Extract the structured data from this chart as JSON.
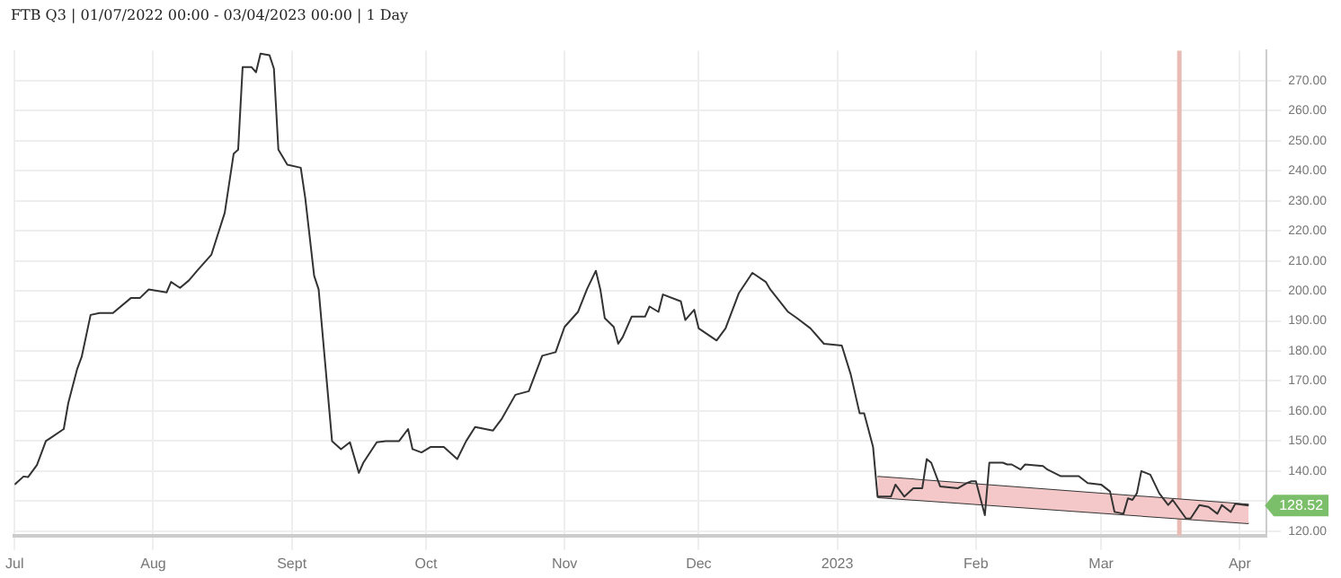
{
  "chart_data": {
    "type": "line",
    "title": "FTB Q3 | 01/07/2022 00:00 - 03/04/2023 00:00 | 1 Day",
    "x": [
      "2022-07-01",
      "2022-07-03",
      "2022-07-04",
      "2022-07-06",
      "2022-07-08",
      "2022-07-09",
      "2022-07-12",
      "2022-07-13",
      "2022-07-15",
      "2022-07-16",
      "2022-07-18",
      "2022-07-20",
      "2022-07-23",
      "2022-07-27",
      "2022-07-29",
      "2022-07-31",
      "2022-08-04",
      "2022-08-05",
      "2022-08-07",
      "2022-08-09",
      "2022-08-11",
      "2022-08-14",
      "2022-08-17",
      "2022-08-19",
      "2022-08-20",
      "2022-08-21",
      "2022-08-23",
      "2022-08-24",
      "2022-08-25",
      "2022-08-27",
      "2022-08-28",
      "2022-08-29",
      "2022-08-31",
      "2022-09-03",
      "2022-09-04",
      "2022-09-06",
      "2022-09-07",
      "2022-09-10",
      "2022-09-12",
      "2022-09-14",
      "2022-09-16",
      "2022-09-17",
      "2022-09-20",
      "2022-09-22",
      "2022-09-25",
      "2022-09-27",
      "2022-09-28",
      "2022-09-30",
      "2022-10-02",
      "2022-10-05",
      "2022-10-08",
      "2022-10-10",
      "2022-10-12",
      "2022-10-16",
      "2022-10-18",
      "2022-10-21",
      "2022-10-24",
      "2022-10-27",
      "2022-10-30",
      "2022-11-01",
      "2022-11-04",
      "2022-11-06",
      "2022-11-08",
      "2022-11-09",
      "2022-11-10",
      "2022-11-12",
      "2022-11-13",
      "2022-11-14",
      "2022-11-16",
      "2022-11-19",
      "2022-11-20",
      "2022-11-22",
      "2022-11-23",
      "2022-11-27",
      "2022-11-28",
      "2022-11-30",
      "2022-12-01",
      "2022-12-05",
      "2022-12-07",
      "2022-12-10",
      "2022-12-13",
      "2022-12-16",
      "2022-12-17",
      "2022-12-21",
      "2022-12-23",
      "2022-12-26",
      "2022-12-29",
      "2023-01-02",
      "2023-01-04",
      "2023-01-06",
      "2023-01-07",
      "2023-01-09",
      "2023-01-10",
      "2023-01-13",
      "2023-01-14",
      "2023-01-16",
      "2023-01-18",
      "2023-01-20",
      "2023-01-21",
      "2023-01-22",
      "2023-01-24",
      "2023-01-28",
      "2023-01-30",
      "2023-01-31",
      "2023-02-01",
      "2023-02-03",
      "2023-02-04",
      "2023-02-07",
      "2023-02-08",
      "2023-02-09",
      "2023-02-11",
      "2023-02-12",
      "2023-02-16",
      "2023-02-17",
      "2023-02-20",
      "2023-02-24",
      "2023-02-26",
      "2023-03-01",
      "2023-03-03",
      "2023-03-04",
      "2023-03-06",
      "2023-03-07",
      "2023-03-08",
      "2023-03-09",
      "2023-03-10",
      "2023-03-12",
      "2023-03-14",
      "2023-03-16",
      "2023-03-17",
      "2023-03-20",
      "2023-03-21",
      "2023-03-23",
      "2023-03-25",
      "2023-03-27",
      "2023-03-28",
      "2023-03-30",
      "2023-03-31",
      "2023-04-03"
    ],
    "series": [
      {
        "color": "#333333",
        "values": [
          135.5,
          138.2,
          138,
          142,
          150,
          151,
          154,
          162.6,
          174,
          178,
          192,
          192.6,
          192.6,
          197.6,
          197.6,
          200.5,
          199.5,
          203,
          201,
          203.5,
          207,
          212,
          226,
          245.7,
          247,
          274.5,
          274.5,
          272.8,
          279,
          278.5,
          274,
          247,
          242,
          241,
          231,
          205,
          200.5,
          150,
          147.3,
          149.6,
          139.4,
          142.8,
          149.6,
          150,
          150,
          154,
          147.3,
          146.2,
          148,
          148,
          144,
          150,
          154.7,
          153.5,
          157.5,
          165.4,
          166.6,
          178.4,
          179.6,
          188,
          193,
          200.5,
          206.7,
          200.5,
          190.9,
          188,
          182.4,
          184.6,
          191.4,
          191.4,
          194.8,
          193,
          198.8,
          196.5,
          190.3,
          193.7,
          187.5,
          183.5,
          187.5,
          199.3,
          206,
          203,
          200.5,
          193,
          190.9,
          187.5,
          182.4,
          181.8,
          172.2,
          159.2,
          159.2,
          148,
          131.5,
          131.5,
          135.5,
          131.5,
          134.3,
          134.3,
          144,
          142.8,
          134.9,
          134.3,
          136,
          136.6,
          136.6,
          125.3,
          142.8,
          142.8,
          142.2,
          142.2,
          140.5,
          142.2,
          141.7,
          140.5,
          138.3,
          138.3,
          136,
          135.5,
          133.2,
          126.4,
          125.8,
          130.9,
          130.4,
          132.6,
          140,
          138.8,
          132.6,
          128.7,
          130.4,
          124.2,
          124.2,
          128.7,
          128.1,
          125.8,
          128.7,
          126.4,
          129.1,
          128.52
        ]
      },
      {
        "color": "#f4c8c8",
        "x": [
          "2023-01-10",
          "2023-04-03"
        ],
        "values": [
          null,
          null
        ],
        "lower": [
          131.3,
          122.6
        ],
        "upper": [
          138.1,
          128.8
        ]
      },
      {
        "color": "#333333",
        "x": [
          "2023-01-10",
          "2023-04-03"
        ],
        "values": [
          138.1,
          128.8
        ]
      },
      {
        "color": "#333333",
        "x": [
          "2023-01-10",
          "2023-04-03"
        ],
        "values": [
          131.3,
          122.6
        ]
      }
    ],
    "bands": [
      {
        "axis": "x",
        "from": "2023-03-18",
        "to": "2023-03-19",
        "color": "#e8bcb5"
      }
    ],
    "annotations": [
      {
        "text": "128.52",
        "x": "2023-04-03",
        "y": 128.52
      }
    ],
    "xlim": [
      "2022-07-01",
      "2023-04-07"
    ],
    "xticks": [
      {
        "value": "2022-07-01",
        "label": "Jul"
      },
      {
        "value": "2022-08-01",
        "label": "Aug"
      },
      {
        "value": "2022-09-01",
        "label": "Sept"
      },
      {
        "value": "2022-10-01",
        "label": "Oct"
      },
      {
        "value": "2022-11-01",
        "label": "Nov"
      },
      {
        "value": "2022-12-01",
        "label": "Dec"
      },
      {
        "value": "2023-01-01",
        "label": "2023"
      },
      {
        "value": "2023-02-01",
        "label": "Feb"
      },
      {
        "value": "2023-03-01",
        "label": "Mar"
      },
      {
        "value": "2023-04-01",
        "label": "Apr"
      }
    ],
    "ylim": [
      118.5,
      280
    ],
    "yticks": [
      {
        "value": 120,
        "label": "120.00"
      },
      {
        "value": 130,
        "label": null
      },
      {
        "value": 140,
        "label": "140.00"
      },
      {
        "value": 150,
        "label": "150.00"
      },
      {
        "value": 160,
        "label": "160.00"
      },
      {
        "value": 170,
        "label": "170.00"
      },
      {
        "value": 180,
        "label": "180.00"
      },
      {
        "value": 190,
        "label": "190.00"
      },
      {
        "value": 200,
        "label": "200.00"
      },
      {
        "value": 210,
        "label": "210.00"
      },
      {
        "value": 220,
        "label": "220.00"
      },
      {
        "value": 230,
        "label": "230.00"
      },
      {
        "value": 240,
        "label": "240.00"
      },
      {
        "value": 250,
        "label": "250.00"
      },
      {
        "value": 260,
        "label": "260.00"
      },
      {
        "value": 270,
        "label": "270.00"
      }
    ],
    "grid": true,
    "legend": false,
    "marker": "none",
    "line_style": "solid"
  }
}
